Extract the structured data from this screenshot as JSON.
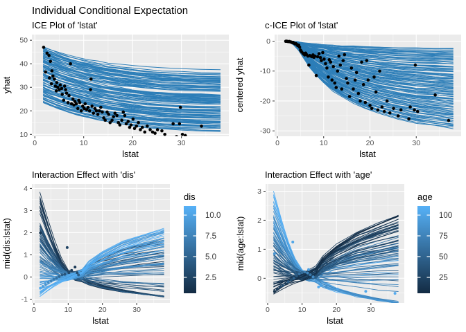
{
  "figure": {
    "title": "Individual Conditional Expectation"
  },
  "chart_data": [
    {
      "id": "ice",
      "type": "line",
      "title": "ICE Plot of 'lstat'",
      "xlabel": "lstat",
      "ylabel": "yhat",
      "xlim": [
        -0.6,
        39.7
      ],
      "ylim": [
        9.2,
        52.4
      ],
      "xticks": [
        0,
        10,
        20,
        30
      ],
      "xtick_labels": [
        "0",
        "10",
        "20",
        "30"
      ],
      "yticks": [
        10,
        20,
        30,
        40,
        50
      ],
      "ytick_labels": [
        "10",
        "20",
        "30",
        "40",
        "50"
      ],
      "xminor": [
        5,
        15,
        25,
        35
      ],
      "yminor": [
        15,
        25,
        35,
        45
      ],
      "line_color": "#2d7eb8",
      "n_lines": 110,
      "seed": 11,
      "x_knots": [
        1.7,
        3,
        5,
        7,
        9,
        11,
        13,
        15,
        17.5,
        20,
        23,
        26,
        30,
        34,
        38
      ],
      "shape": [
        0,
        -1.2,
        -2.8,
        -4.2,
        -5.3,
        -6.3,
        -7.2,
        -8,
        -8.8,
        -9.5,
        -10.2,
        -10.7,
        -11.1,
        -11.4,
        -11.6
      ],
      "start_range": [
        23.5,
        47.3
      ],
      "point_color": "#000000",
      "points": [
        [
          1.8,
          47
        ],
        [
          2.2,
          36.5
        ],
        [
          2.5,
          44.5
        ],
        [
          2.9,
          43.5
        ],
        [
          3.0,
          34
        ],
        [
          3.2,
          41
        ],
        [
          3.4,
          31.5
        ],
        [
          3.5,
          37
        ],
        [
          3.7,
          34.8
        ],
        [
          4.0,
          33.5
        ],
        [
          4.2,
          30.5
        ],
        [
          4.4,
          28.5
        ],
        [
          4.5,
          32
        ],
        [
          4.7,
          30
        ],
        [
          5.0,
          29
        ],
        [
          5.2,
          31
        ],
        [
          5.5,
          29.5
        ],
        [
          5.6,
          27
        ],
        [
          5.9,
          24.5
        ],
        [
          6.1,
          30.5
        ],
        [
          6.3,
          29
        ],
        [
          6.5,
          27.5
        ],
        [
          6.8,
          23.5
        ],
        [
          7.0,
          26.5
        ],
        [
          7.3,
          40
        ],
        [
          7.5,
          23
        ],
        [
          7.8,
          25
        ],
        [
          8.0,
          22.5
        ],
        [
          8.2,
          24
        ],
        [
          8.5,
          23
        ],
        [
          8.8,
          21
        ],
        [
          9.0,
          24.5
        ],
        [
          9.2,
          23.5
        ],
        [
          9.5,
          20
        ],
        [
          9.8,
          22
        ],
        [
          10.1,
          21
        ],
        [
          10.3,
          23
        ],
        [
          10.6,
          20.5
        ],
        [
          10.9,
          21.5
        ],
        [
          11.2,
          20
        ],
        [
          11.4,
          29
        ],
        [
          11.5,
          33.5
        ],
        [
          11.7,
          22
        ],
        [
          12.0,
          19
        ],
        [
          12.3,
          21
        ],
        [
          12.6,
          20
        ],
        [
          12.9,
          18.5
        ],
        [
          13.2,
          20
        ],
        [
          13.5,
          21.5
        ],
        [
          13.8,
          19.5
        ],
        [
          14.1,
          17
        ],
        [
          14.4,
          16
        ],
        [
          14.8,
          19.5
        ],
        [
          15.1,
          18.5
        ],
        [
          15.4,
          15
        ],
        [
          15.8,
          16
        ],
        [
          16.1,
          17.5
        ],
        [
          16.4,
          19
        ],
        [
          16.8,
          18
        ],
        [
          17.1,
          15
        ],
        [
          17.4,
          14
        ],
        [
          17.8,
          16
        ],
        [
          18.1,
          19.5
        ],
        [
          18.4,
          18
        ],
        [
          18.7,
          14.5
        ],
        [
          19.1,
          15.5
        ],
        [
          19.4,
          13
        ],
        [
          19.7,
          14
        ],
        [
          20.1,
          16.5
        ],
        [
          20.4,
          12.5
        ],
        [
          20.8,
          13.5
        ],
        [
          21.2,
          15
        ],
        [
          21.6,
          12
        ],
        [
          22.0,
          13
        ],
        [
          22.5,
          11
        ],
        [
          23.0,
          13.5
        ],
        [
          23.6,
          12
        ],
        [
          24.1,
          11
        ],
        [
          24.6,
          10.5
        ],
        [
          25.1,
          12
        ],
        [
          26.0,
          11.5
        ],
        [
          26.6,
          10
        ],
        [
          28.3,
          14.5
        ],
        [
          29.0,
          9
        ],
        [
          29.6,
          14.5
        ],
        [
          29.8,
          21.5
        ],
        [
          30.2,
          10
        ],
        [
          30.8,
          9.5
        ],
        [
          34.1,
          13.5
        ],
        [
          37.0,
          7
        ]
      ]
    },
    {
      "id": "cice",
      "type": "line",
      "title": "c-ICE Plot of 'lstat'",
      "xlabel": "lstat",
      "ylabel": "centered yhat",
      "xlim": [
        -0.6,
        39.7
      ],
      "ylim": [
        -31.8,
        2.2
      ],
      "xticks": [
        0,
        10,
        20,
        30
      ],
      "xtick_labels": [
        "0",
        "10",
        "20",
        "30"
      ],
      "yticks": [
        0,
        -10,
        -20,
        -30
      ],
      "ytick_labels": [
        "0",
        "-10",
        "-20",
        "-30"
      ],
      "xminor": [
        5,
        15,
        25,
        35
      ],
      "yminor": [
        -5,
        -15,
        -25
      ],
      "line_color": "#2d7eb8",
      "n_lines": 110,
      "seed": 7,
      "g_knots": [
        1.7,
        2.5,
        3.5,
        4.5,
        5.5,
        7,
        8.5,
        10,
        12,
        14,
        16.5,
        19,
        22,
        26,
        30,
        34,
        38
      ],
      "g": [
        0,
        0.01,
        0.04,
        0.1,
        0.18,
        0.3,
        0.4,
        0.48,
        0.57,
        0.64,
        0.71,
        0.77,
        0.83,
        0.89,
        0.94,
        0.97,
        1
      ],
      "end_range": [
        -2.2,
        -29
      ],
      "point_color": "#000000",
      "points": [
        [
          1.8,
          -0.05
        ],
        [
          2.0,
          0.0
        ],
        [
          2.2,
          -0.1
        ],
        [
          2.4,
          -0.15
        ],
        [
          2.6,
          -0.1
        ],
        [
          2.8,
          -0.25
        ],
        [
          3.0,
          -0.3
        ],
        [
          3.2,
          -0.5
        ],
        [
          3.4,
          -0.4
        ],
        [
          3.6,
          -0.7
        ],
        [
          3.8,
          -0.9
        ],
        [
          4.0,
          -0.8
        ],
        [
          4.2,
          -1.1
        ],
        [
          4.4,
          -1.5
        ],
        [
          4.6,
          -1.3
        ],
        [
          4.8,
          -2.0
        ],
        [
          5.0,
          -3.0
        ],
        [
          5.2,
          -3.5
        ],
        [
          5.5,
          -4.0
        ],
        [
          5.7,
          -4.3
        ],
        [
          5.9,
          -4.6
        ],
        [
          6.1,
          -4.0
        ],
        [
          6.3,
          -4.5
        ],
        [
          6.6,
          -5.0
        ],
        [
          6.8,
          -8.0
        ],
        [
          7.0,
          -4.8
        ],
        [
          7.2,
          -5.0
        ],
        [
          7.5,
          -5.2
        ],
        [
          7.7,
          -4.6
        ],
        [
          7.9,
          -5.4
        ],
        [
          8.1,
          -5.0
        ],
        [
          8.4,
          -11.5
        ],
        [
          8.7,
          -5.2
        ],
        [
          9.0,
          -4.2
        ],
        [
          9.3,
          -5.5
        ],
        [
          9.5,
          -6.5
        ],
        [
          9.8,
          -3.8
        ],
        [
          10.1,
          -6.0
        ],
        [
          10.4,
          -7.5
        ],
        [
          10.7,
          -9.0
        ],
        [
          11.0,
          -12.0
        ],
        [
          11.2,
          -6.2
        ],
        [
          11.5,
          -7.0
        ],
        [
          11.8,
          -13.0
        ],
        [
          12.1,
          -8.5
        ],
        [
          12.4,
          -14.0
        ],
        [
          12.7,
          -15.5
        ],
        [
          13.0,
          -10.0
        ],
        [
          13.3,
          -5.0
        ],
        [
          13.6,
          -8.0
        ],
        [
          13.9,
          -16.0
        ],
        [
          14.2,
          -6.5
        ],
        [
          14.5,
          -4.5
        ],
        [
          14.9,
          -12.5
        ],
        [
          15.2,
          -14.0
        ],
        [
          15.6,
          -18.5
        ],
        [
          16.0,
          -9.0
        ],
        [
          16.4,
          -16.0
        ],
        [
          16.8,
          -13.0
        ],
        [
          17.1,
          -10.5
        ],
        [
          17.5,
          -17.5
        ],
        [
          17.9,
          -20.0
        ],
        [
          18.2,
          -7.0
        ],
        [
          18.6,
          -14.5
        ],
        [
          19.0,
          -20.5
        ],
        [
          19.3,
          -6.5
        ],
        [
          19.6,
          -13.0
        ],
        [
          20.0,
          -21.5
        ],
        [
          20.4,
          -22.5
        ],
        [
          20.9,
          -12.0
        ],
        [
          21.3,
          -17.0
        ],
        [
          21.7,
          -23.0
        ],
        [
          22.1,
          -10.0
        ],
        [
          22.6,
          -22.0
        ],
        [
          23.1,
          -23.5
        ],
        [
          23.7,
          -20.0
        ],
        [
          24.3,
          -24.0
        ],
        [
          25.1,
          -22.5
        ],
        [
          26.1,
          -25.0
        ],
        [
          26.7,
          -23.0
        ],
        [
          28.4,
          -26.0
        ],
        [
          28.7,
          -22.0
        ],
        [
          29.6,
          -23.0
        ],
        [
          29.8,
          -8.0
        ],
        [
          30.3,
          -23.5
        ],
        [
          34.1,
          -18.0
        ],
        [
          37.0,
          -26.5
        ]
      ]
    },
    {
      "id": "dis",
      "type": "line",
      "title": "Interaction Effect with 'dis'",
      "xlabel": "lstat",
      "ylabel": "mid(dis:lstat)",
      "xlim": [
        -0.6,
        39.7
      ],
      "ylim": [
        -1.17,
        4.2
      ],
      "xticks": [
        0,
        10,
        20,
        30
      ],
      "xtick_labels": [
        "0",
        "10",
        "20",
        "30"
      ],
      "yticks": [
        -1,
        0,
        1,
        2,
        3,
        4
      ],
      "ytick_labels": [
        "-1",
        "0",
        "1",
        "2",
        "3",
        "4"
      ],
      "xminor": [
        5,
        15,
        25,
        35
      ],
      "yminor": [
        -0.5,
        0.5,
        1.5,
        2.5,
        3.5
      ],
      "n_lines": 85,
      "seed": 3,
      "legend": {
        "title": "dis",
        "labels": [
          "10.0",
          "7.5",
          "5.0",
          "2.5"
        ],
        "low_color": "#132B43",
        "high_color": "#56B1F7",
        "range": [
          1.1,
          12.1
        ]
      },
      "points": [
        [
          1.9,
          2.0,
          2.0
        ],
        [
          9.7,
          1.33,
          3.0
        ],
        [
          12.0,
          0.45,
          2.2
        ],
        [
          11.0,
          0.3,
          2.6
        ],
        [
          10.2,
          0.2,
          3.4
        ],
        [
          9.0,
          0.12,
          4.5
        ],
        [
          8.2,
          0.1,
          5.2
        ],
        [
          7.4,
          0.02,
          6.0
        ],
        [
          6.6,
          -0.05,
          6.8
        ],
        [
          5.8,
          -0.1,
          7.5
        ],
        [
          5.0,
          -0.18,
          8.2
        ],
        [
          4.2,
          -0.25,
          9.0
        ],
        [
          3.4,
          -0.33,
          9.8
        ],
        [
          2.6,
          -0.42,
          10.5
        ],
        [
          1.9,
          -0.5,
          11.2
        ],
        [
          13.0,
          0.1,
          5.0
        ],
        [
          14.0,
          -0.05,
          7.0
        ],
        [
          12.6,
          0.2,
          3.8
        ]
      ]
    },
    {
      "id": "age",
      "type": "line",
      "title": "Interaction Effect with 'age'",
      "xlabel": "lstat",
      "ylabel": "mid(age:lstat)",
      "xlim": [
        -0.6,
        39.7
      ],
      "ylim": [
        -0.85,
        3.25
      ],
      "xticks": [
        0,
        10,
        20,
        30
      ],
      "xtick_labels": [
        "0",
        "10",
        "20",
        "30"
      ],
      "yticks": [
        0,
        1,
        2,
        3
      ],
      "ytick_labels": [
        "0",
        "1",
        "2",
        "3"
      ],
      "xminor": [
        5,
        15,
        25,
        35
      ],
      "yminor": [
        -0.5,
        0.5,
        1.5,
        2.5
      ],
      "n_lines": 85,
      "seed": 5,
      "legend": {
        "title": "age",
        "labels": [
          "100",
          "75",
          "50",
          "25"
        ],
        "low_color": "#132B43",
        "high_color": "#56B1F7",
        "range": [
          3,
          100
        ]
      },
      "points": [
        [
          2.0,
          0.85,
          80
        ],
        [
          7.3,
          1.25,
          92
        ],
        [
          11.9,
          0.3,
          88
        ],
        [
          14.8,
          -0.3,
          95
        ],
        [
          20.3,
          -0.37,
          90
        ],
        [
          28.5,
          -0.45,
          93
        ],
        [
          37.0,
          -0.52,
          96
        ],
        [
          2.0,
          -0.45,
          8
        ],
        [
          2.8,
          -0.38,
          15
        ],
        [
          3.6,
          -0.3,
          22
        ],
        [
          4.4,
          -0.25,
          30
        ],
        [
          5.2,
          -0.18,
          18
        ],
        [
          6.0,
          -0.12,
          38
        ],
        [
          6.8,
          -0.05,
          28
        ],
        [
          7.6,
          0.0,
          45
        ],
        [
          8.4,
          0.08,
          35
        ],
        [
          9.2,
          0.15,
          55
        ],
        [
          10.0,
          0.2,
          50
        ],
        [
          10.8,
          0.22,
          62
        ],
        [
          11.6,
          0.18,
          70
        ],
        [
          12.4,
          0.12,
          58
        ],
        [
          13.2,
          0.05,
          75
        ],
        [
          14.0,
          -0.1,
          82
        ],
        [
          15.5,
          -0.25,
          88
        ],
        [
          17.0,
          -0.3,
          78
        ]
      ]
    }
  ],
  "style": {
    "panel_bg": "#EBEBEB",
    "grid_color": "#FFFFFF",
    "tick_color": "#333333"
  }
}
